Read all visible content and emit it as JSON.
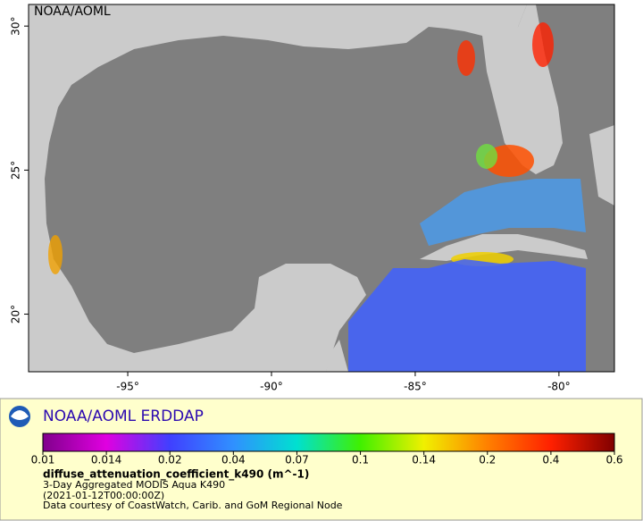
{
  "map": {
    "label": "NOAA/AOML",
    "xlim": [
      -98.45,
      -78.07
    ],
    "ylim": [
      18,
      30.75
    ],
    "xticks": [
      {
        "value": -95,
        "label": "-95°"
      },
      {
        "value": -90,
        "label": "-90°"
      },
      {
        "value": -85,
        "label": "-85°"
      },
      {
        "value": -80,
        "label": "-80°"
      }
    ],
    "yticks": [
      {
        "value": 20,
        "label": "20°"
      },
      {
        "value": 25,
        "label": "25°"
      },
      {
        "value": 30,
        "label": "30°"
      }
    ]
  },
  "legend": {
    "title": "NOAA/AOML ERDDAP",
    "colorbar": {
      "scale": "log",
      "lim": [
        0.01,
        0.6
      ],
      "ticks": [
        0.01,
        0.014,
        0.02,
        0.04,
        0.07,
        0.1,
        0.14,
        0.2,
        0.4,
        0.6
      ],
      "colors": [
        "#80008c",
        "#e000e0",
        "#4040ff",
        "#3090ff",
        "#00e0d0",
        "#40f000",
        "#f0f000",
        "#ff8000",
        "#ff2000",
        "#800000"
      ]
    },
    "variable": "diffuse_attenuation_coefficient_k490 (m^-1)",
    "lines": [
      "3-Day Aggregated MODIS Aqua K490",
      "(2021-01-12T00:00:00Z)",
      "Data courtesy of CoastWatch, Carib. and GoM Regional Node"
    ]
  }
}
